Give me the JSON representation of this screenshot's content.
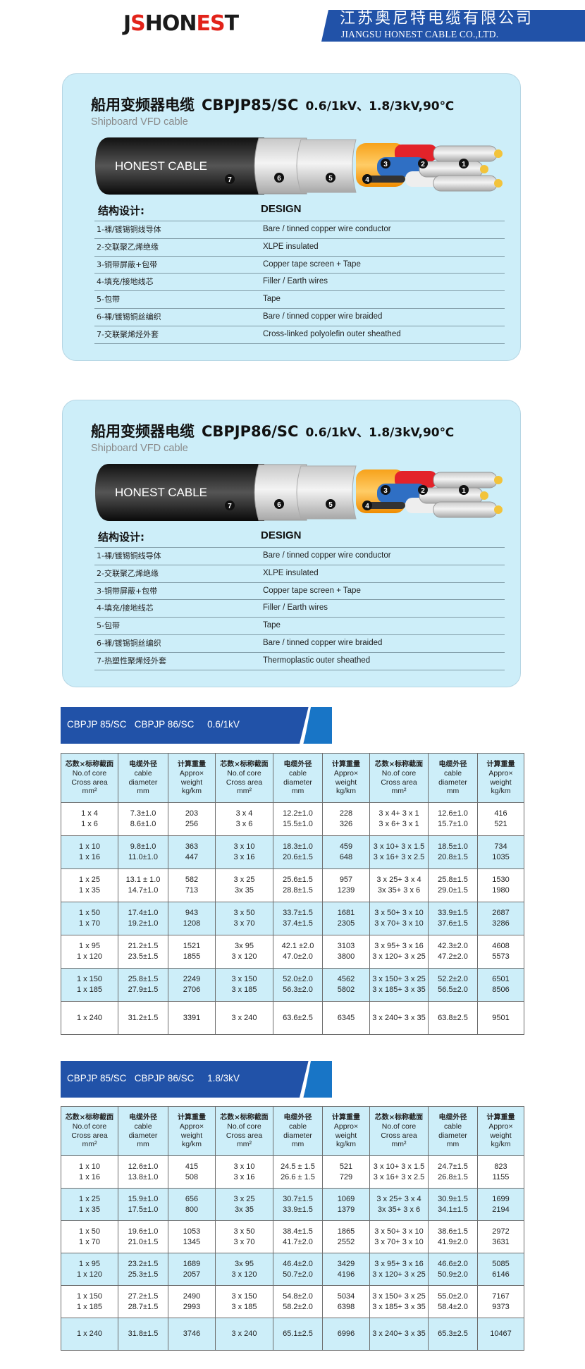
{
  "header": {
    "logo_text_a": "JS",
    "logo_text_b": "HONEST",
    "logo_display": [
      "J",
      "S",
      "HON",
      "E",
      "S",
      "T"
    ],
    "company_cn": "江苏奥尼特电缆有限公司",
    "company_en": "JIANGSU HONEST CABLE CO.,LTD.",
    "brand_blue": "#2152a8",
    "brand_red": "#e2231a"
  },
  "cards": [
    {
      "title_cn": "船用变频器电缆",
      "model": "CBPJP85/SC",
      "rating": "0.6/1kV、1.8/3kV,90℃",
      "subtitle": "Shipboard VFD cable",
      "cable_label": "HONEST CABLE",
      "design_cn": "结构设计:",
      "design_en": "DESIGN",
      "rows": [
        {
          "cn": "1-裸/镀锡铜线导体",
          "en": "Bare / tinned copper wire conductor"
        },
        {
          "cn": "2-交联聚乙烯绝缘",
          "en": "XLPE insulated"
        },
        {
          "cn": "3-铜带屏蔽+包带",
          "en": "Copper tape screen + Tape"
        },
        {
          "cn": "4-填充/接地线芯",
          "en": "Filler / Earth wires"
        },
        {
          "cn": "5-包带",
          "en": "Tape"
        },
        {
          "cn": "6-裸/镀锡铜丝编织",
          "en": "Bare / tinned copper wire braided"
        },
        {
          "cn": "7-交联聚烯烃外套",
          "en": "Cross-linked  polyolefin  outer  sheathed"
        }
      ]
    },
    {
      "title_cn": "船用变频器电缆",
      "model": "CBPJP86/SC",
      "rating": "0.6/1kV、1.8/3kV,90℃",
      "subtitle": "Shipboard VFD cable",
      "cable_label": "HONEST CABLE",
      "design_cn": "结构设计:",
      "design_en": "DESIGN",
      "rows": [
        {
          "cn": "1-裸/镀锡铜线导体",
          "en": "Bare / tinned copper wire conductor"
        },
        {
          "cn": "2-交联聚乙烯绝缘",
          "en": "XLPE insulated"
        },
        {
          "cn": "3-铜带屏蔽+包带",
          "en": "Copper tape screen + Tape"
        },
        {
          "cn": "4-填充/接地线芯",
          "en": "Filler / Earth wires"
        },
        {
          "cn": "5-包带",
          "en": "Tape"
        },
        {
          "cn": "6-裸/镀锡铜丝编织",
          "en": "Bare / tinned copper wire braided"
        },
        {
          "cn": "7-热塑性聚烯烃外套",
          "en": "Thermoplastic outer sheathed"
        }
      ]
    }
  ],
  "table_header": [
    {
      "cn": "芯数×标称截面",
      "en": [
        "No.of core",
        "Cross area",
        "mm²"
      ]
    },
    {
      "cn": "电缆外径",
      "en": [
        "cable",
        "diameter",
        "mm"
      ]
    },
    {
      "cn": "计算重量",
      "en": [
        "Appro×",
        "weight",
        "kg/km"
      ]
    },
    {
      "cn": "芯数×标称截面",
      "en": [
        "No.of core",
        "Cross area",
        "mm²"
      ]
    },
    {
      "cn": "电缆外径",
      "en": [
        "cable",
        "diameter",
        "mm"
      ]
    },
    {
      "cn": "计算重量",
      "en": [
        "Appro×",
        "weight",
        "kg/km"
      ]
    },
    {
      "cn": "芯数×标称截面",
      "en": [
        "No.of core",
        "Cross area",
        "mm²"
      ]
    },
    {
      "cn": "电缆外径",
      "en": [
        "cable",
        "diameter",
        "mm"
      ]
    },
    {
      "cn": "计算重量",
      "en": [
        "Appro×",
        "weight",
        "kg/km"
      ]
    }
  ],
  "tables": [
    {
      "banner": "CBPJP 85/SC   CBPJP 86/SC     0.6/1kV",
      "rows": [
        [
          [
            "1 x 4",
            "1 x 6"
          ],
          [
            "7.3±1.0",
            "8.6±1.0"
          ],
          [
            "203",
            "256"
          ],
          [
            "3 x 4",
            "3 x 6"
          ],
          [
            "12.2±1.0",
            "15.5±1.0"
          ],
          [
            "228",
            "326"
          ],
          [
            "3 x 4+ 3 x 1",
            "3 x 6+ 3 x 1"
          ],
          [
            "12.6±1.0",
            "15.7±1.0"
          ],
          [
            "416",
            "521"
          ]
        ],
        [
          [
            "1 x 10",
            "1 x 16"
          ],
          [
            "9.8±1.0",
            "11.0±1.0"
          ],
          [
            "363",
            "447"
          ],
          [
            "3 x 10",
            "3 x 16"
          ],
          [
            "18.3±1.0",
            "20.6±1.5"
          ],
          [
            "459",
            "648"
          ],
          [
            "3 x 10+ 3 x 1.5",
            "3 x 16+ 3 x 2.5"
          ],
          [
            "18.5±1.0",
            "20.8±1.5"
          ],
          [
            "734",
            "1035"
          ]
        ],
        [
          [
            "1 x 25",
            "1 x 35"
          ],
          [
            "13.1 ± 1.0",
            "14.7±1.0"
          ],
          [
            "582",
            "713"
          ],
          [
            "3 x 25",
            "3x 35"
          ],
          [
            "25.6±1.5",
            "28.8±1.5"
          ],
          [
            "957",
            "1239"
          ],
          [
            "3 x 25+ 3 x 4",
            "3x 35+ 3 x  6"
          ],
          [
            "25.8±1.5",
            "29.0±1.5"
          ],
          [
            "1530",
            "1980"
          ]
        ],
        [
          [
            "1 x 50",
            "1 x 70"
          ],
          [
            "17.4±1.0",
            "19.2±1.0"
          ],
          [
            "943",
            "1208"
          ],
          [
            "3 x 50",
            "3 x 70"
          ],
          [
            "33.7±1.5",
            "37.4±1.5"
          ],
          [
            "1681",
            "2305"
          ],
          [
            "3 x 50+ 3 x 10",
            "3 x 70+ 3 x 10"
          ],
          [
            "33.9±1.5",
            "37.6±1.5"
          ],
          [
            "2687",
            "3286"
          ]
        ],
        [
          [
            "1 x 95",
            "1 x 120"
          ],
          [
            "21.2±1.5",
            "23.5±1.5"
          ],
          [
            "1521",
            "1855"
          ],
          [
            "3x 95",
            "3 x 120"
          ],
          [
            "42.1 ±2.0",
            "47.0±2.0"
          ],
          [
            "3103",
            "3800"
          ],
          [
            "3 x 95+ 3 x 16",
            "3 x 120+ 3 x 25"
          ],
          [
            "42.3±2.0",
            "47.2±2.0"
          ],
          [
            "4608",
            "5573"
          ]
        ],
        [
          [
            "1 x 150",
            "1 x 185"
          ],
          [
            "25.8±1.5",
            "27.9±1.5"
          ],
          [
            "2249",
            "2706"
          ],
          [
            "3 x 150",
            "3 x 185"
          ],
          [
            "52.0±2.0",
            "56.3±2.0"
          ],
          [
            "4562",
            "5802"
          ],
          [
            "3 x 150+ 3 x 25",
            "3 x 185+ 3 x 35"
          ],
          [
            "52.2±2.0",
            "56.5±2.0"
          ],
          [
            "6501",
            "8506"
          ]
        ],
        [
          [
            "1 x 240"
          ],
          [
            "31.2±1.5"
          ],
          [
            "3391"
          ],
          [
            "3 x 240"
          ],
          [
            "63.6±2.5"
          ],
          [
            "6345"
          ],
          [
            "3 x 240+ 3 x 35"
          ],
          [
            "63.8±2.5"
          ],
          [
            "9501"
          ]
        ]
      ]
    },
    {
      "banner": "CBPJP 85/SC   CBPJP 86/SC     1.8/3kV",
      "rows": [
        [
          [
            "1 x 10",
            "1 x 16"
          ],
          [
            "12.6±1.0",
            "13.8±1.0"
          ],
          [
            "415",
            "508"
          ],
          [
            "3 x 10",
            "3 x 16"
          ],
          [
            "24.5 ± 1.5",
            "26.6 ± 1.5"
          ],
          [
            "521",
            "729"
          ],
          [
            "3 x 10+ 3 x 1.5",
            "3 x 16+ 3 x 2.5"
          ],
          [
            "24.7±1.5",
            "26.8±1.5"
          ],
          [
            "823",
            "1155"
          ]
        ],
        [
          [
            "1 x 25",
            "1 x 35"
          ],
          [
            "15.9±1.0",
            "17.5±1.0"
          ],
          [
            "656",
            "800"
          ],
          [
            "3 x 25",
            "3x 35"
          ],
          [
            "30.7±1.5",
            "33.9±1.5"
          ],
          [
            "1069",
            "1379"
          ],
          [
            "3 x 25+ 3 x 4",
            "3x 35+ 3 x  6"
          ],
          [
            "30.9±1.5",
            "34.1±1.5"
          ],
          [
            "1699",
            "2194"
          ]
        ],
        [
          [
            "1 x 50",
            "1 x 70"
          ],
          [
            "19.6±1.0",
            "21.0±1.5"
          ],
          [
            "1053",
            "1345"
          ],
          [
            "3 x 50",
            "3 x 70"
          ],
          [
            "38.4±1.5",
            "41.7±2.0"
          ],
          [
            "1865",
            "2552"
          ],
          [
            "3 x 50+ 3 x 10",
            "3 x 70+ 3 x 10"
          ],
          [
            "38.6±1.5",
            "41.9±2.0"
          ],
          [
            "2972",
            "3631"
          ]
        ],
        [
          [
            "1 x 95",
            "1 x 120"
          ],
          [
            "23.2±1.5",
            "25.3±1.5"
          ],
          [
            "1689",
            "2057"
          ],
          [
            "3x 95",
            "3 x 120"
          ],
          [
            "46.4±2.0",
            "50.7±2.0"
          ],
          [
            "3429",
            "4196"
          ],
          [
            "3 x 95+ 3 x 16",
            "3 x 120+ 3 x 25"
          ],
          [
            "46.6±2.0",
            "50.9±2.0"
          ],
          [
            "5085",
            "6146"
          ]
        ],
        [
          [
            "1 x 150",
            "1 x 185"
          ],
          [
            "27.2±1.5",
            "28.7±1.5"
          ],
          [
            "2490",
            "2993"
          ],
          [
            "3 x 150",
            "3 x 185"
          ],
          [
            "54.8±2.0",
            "58.2±2.0"
          ],
          [
            "5034",
            "6398"
          ],
          [
            "3 x 150+ 3 x 25",
            "3 x 185+ 3 x 35"
          ],
          [
            "55.0±2.0",
            "58.4±2.0"
          ],
          [
            "7167",
            "9373"
          ]
        ],
        [
          [
            "1 x 240"
          ],
          [
            "31.8±1.5"
          ],
          [
            "3746"
          ],
          [
            "3 x 240"
          ],
          [
            "65.1±2.5"
          ],
          [
            "6996"
          ],
          [
            "3 x 240+ 3 x 35"
          ],
          [
            "65.3±2.5"
          ],
          [
            "10467"
          ]
        ]
      ]
    }
  ],
  "colors": {
    "card_bg": "#cdeef9",
    "banner_blue": "#2152a8",
    "stripe_blue": "#1875c6",
    "row_alt": "#cdeef9"
  }
}
